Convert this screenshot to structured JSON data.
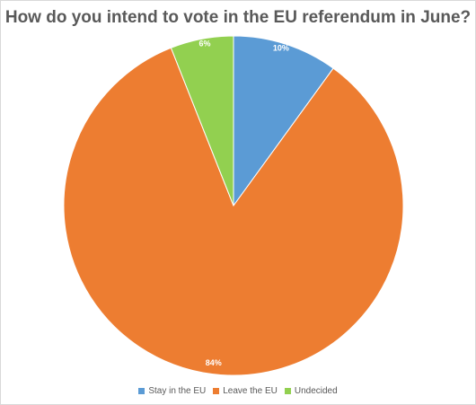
{
  "chart_data": {
    "type": "pie",
    "title": "How do you intend to vote in the EU referendum in June?",
    "categories": [
      "Stay in the EU",
      "Leave the EU",
      "Undecided"
    ],
    "values": [
      10,
      84,
      6
    ],
    "data_labels": [
      "10%",
      "84%",
      "6%"
    ],
    "colors": [
      "#5b9bd5",
      "#ed7d31",
      "#92d050"
    ],
    "legend_position": "bottom"
  }
}
